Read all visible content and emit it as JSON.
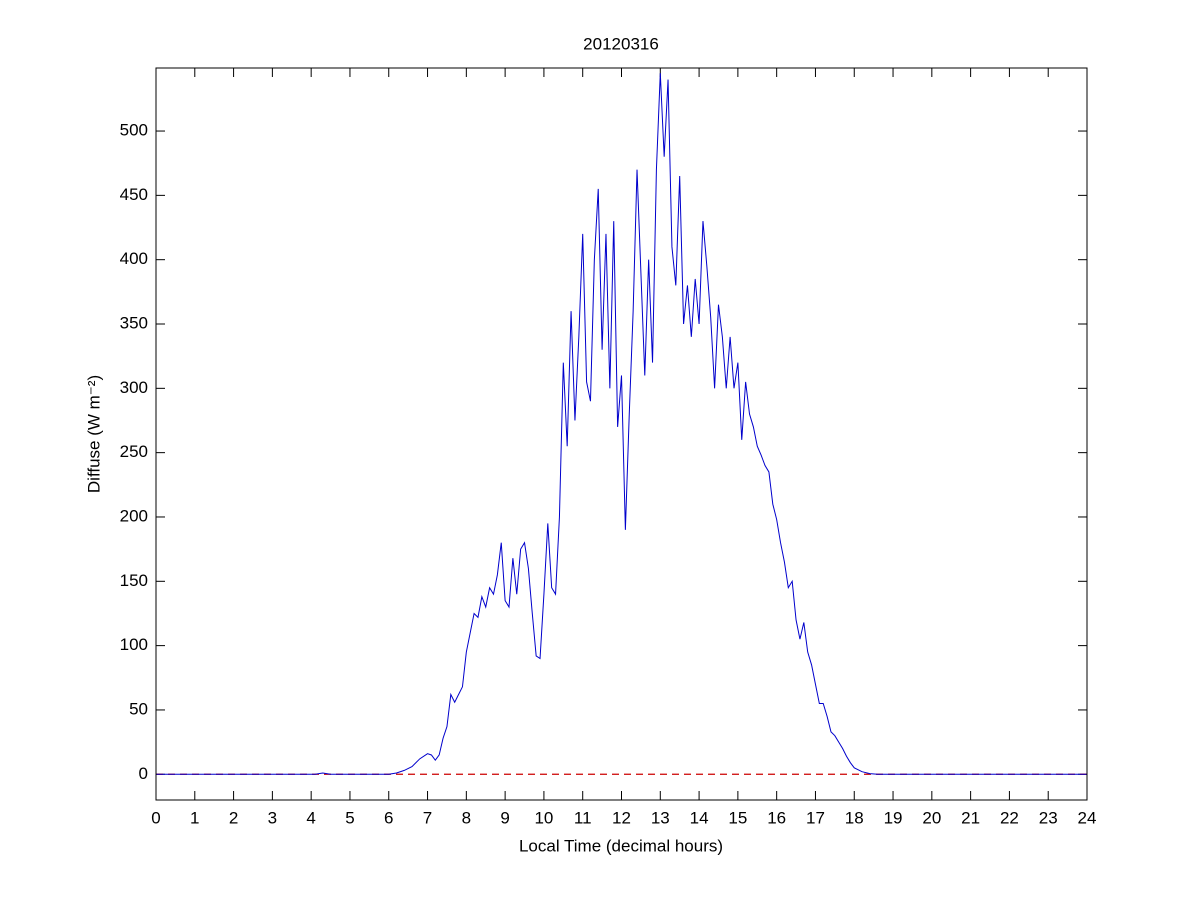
{
  "chart_data": {
    "type": "line",
    "title": "20120316",
    "xlabel": "Local Time (decimal hours)",
    "ylabel": "Diffuse (W m⁻²)",
    "x": [
      0,
      4.1,
      4.3,
      4.5,
      6.0,
      6.2,
      6.4,
      6.6,
      6.8,
      7.0,
      7.1,
      7.2,
      7.3,
      7.4,
      7.5,
      7.6,
      7.7,
      7.8,
      7.9,
      8.0,
      8.1,
      8.2,
      8.3,
      8.4,
      8.5,
      8.6,
      8.7,
      8.8,
      8.9,
      9.0,
      9.1,
      9.2,
      9.3,
      9.4,
      9.5,
      9.6,
      9.7,
      9.8,
      9.9,
      10.0,
      10.1,
      10.2,
      10.3,
      10.4,
      10.5,
      10.6,
      10.7,
      10.8,
      10.9,
      11.0,
      11.1,
      11.2,
      11.3,
      11.4,
      11.5,
      11.6,
      11.7,
      11.8,
      11.9,
      12.0,
      12.1,
      12.2,
      12.3,
      12.4,
      12.5,
      12.6,
      12.7,
      12.8,
      12.9,
      13.0,
      13.1,
      13.2,
      13.3,
      13.4,
      13.5,
      13.6,
      13.7,
      13.8,
      13.9,
      14.0,
      14.1,
      14.2,
      14.3,
      14.4,
      14.5,
      14.6,
      14.7,
      14.8,
      14.9,
      15.0,
      15.1,
      15.2,
      15.3,
      15.4,
      15.5,
      15.6,
      15.7,
      15.8,
      15.9,
      16.0,
      16.1,
      16.2,
      16.3,
      16.4,
      16.5,
      16.6,
      16.7,
      16.8,
      16.9,
      17.0,
      17.1,
      17.2,
      17.3,
      17.4,
      17.5,
      17.6,
      17.7,
      17.8,
      17.9,
      18.0,
      18.2,
      18.4,
      18.6,
      24
    ],
    "series": [
      {
        "name": "Diffuse",
        "color": "#0000cc",
        "values": [
          0,
          0,
          1,
          0,
          0,
          1,
          3,
          6,
          12,
          16,
          15,
          11,
          15,
          28,
          37,
          62,
          56,
          62,
          68,
          95,
          110,
          125,
          122,
          138,
          130,
          145,
          140,
          155,
          180,
          135,
          130,
          168,
          140,
          175,
          180,
          160,
          125,
          92,
          90,
          140,
          195,
          145,
          140,
          200,
          320,
          255,
          360,
          275,
          340,
          420,
          305,
          290,
          400,
          455,
          330,
          420,
          300,
          430,
          270,
          310,
          190,
          280,
          360,
          470,
          390,
          310,
          400,
          320,
          470,
          545,
          480,
          540,
          410,
          380,
          465,
          350,
          380,
          340,
          385,
          350,
          430,
          395,
          355,
          300,
          365,
          340,
          300,
          340,
          300,
          320,
          260,
          305,
          280,
          270,
          255,
          248,
          240,
          235,
          210,
          198,
          180,
          165,
          145,
          150,
          120,
          105,
          118,
          95,
          85,
          70,
          55,
          55,
          45,
          33,
          30,
          25,
          20,
          14,
          9,
          5,
          2,
          0.5,
          0,
          0
        ]
      }
    ],
    "reference_line": {
      "y": 0,
      "color": "#cc0000",
      "style": "dashed"
    },
    "xlim": [
      0,
      24
    ],
    "xticks": [
      0,
      1,
      2,
      3,
      4,
      5,
      6,
      7,
      8,
      9,
      10,
      11,
      12,
      13,
      14,
      15,
      16,
      17,
      18,
      19,
      20,
      21,
      22,
      23,
      24
    ],
    "ylim": [
      -20,
      549
    ],
    "yticks": [
      0,
      50,
      100,
      150,
      200,
      250,
      300,
      350,
      400,
      450,
      500
    ]
  }
}
